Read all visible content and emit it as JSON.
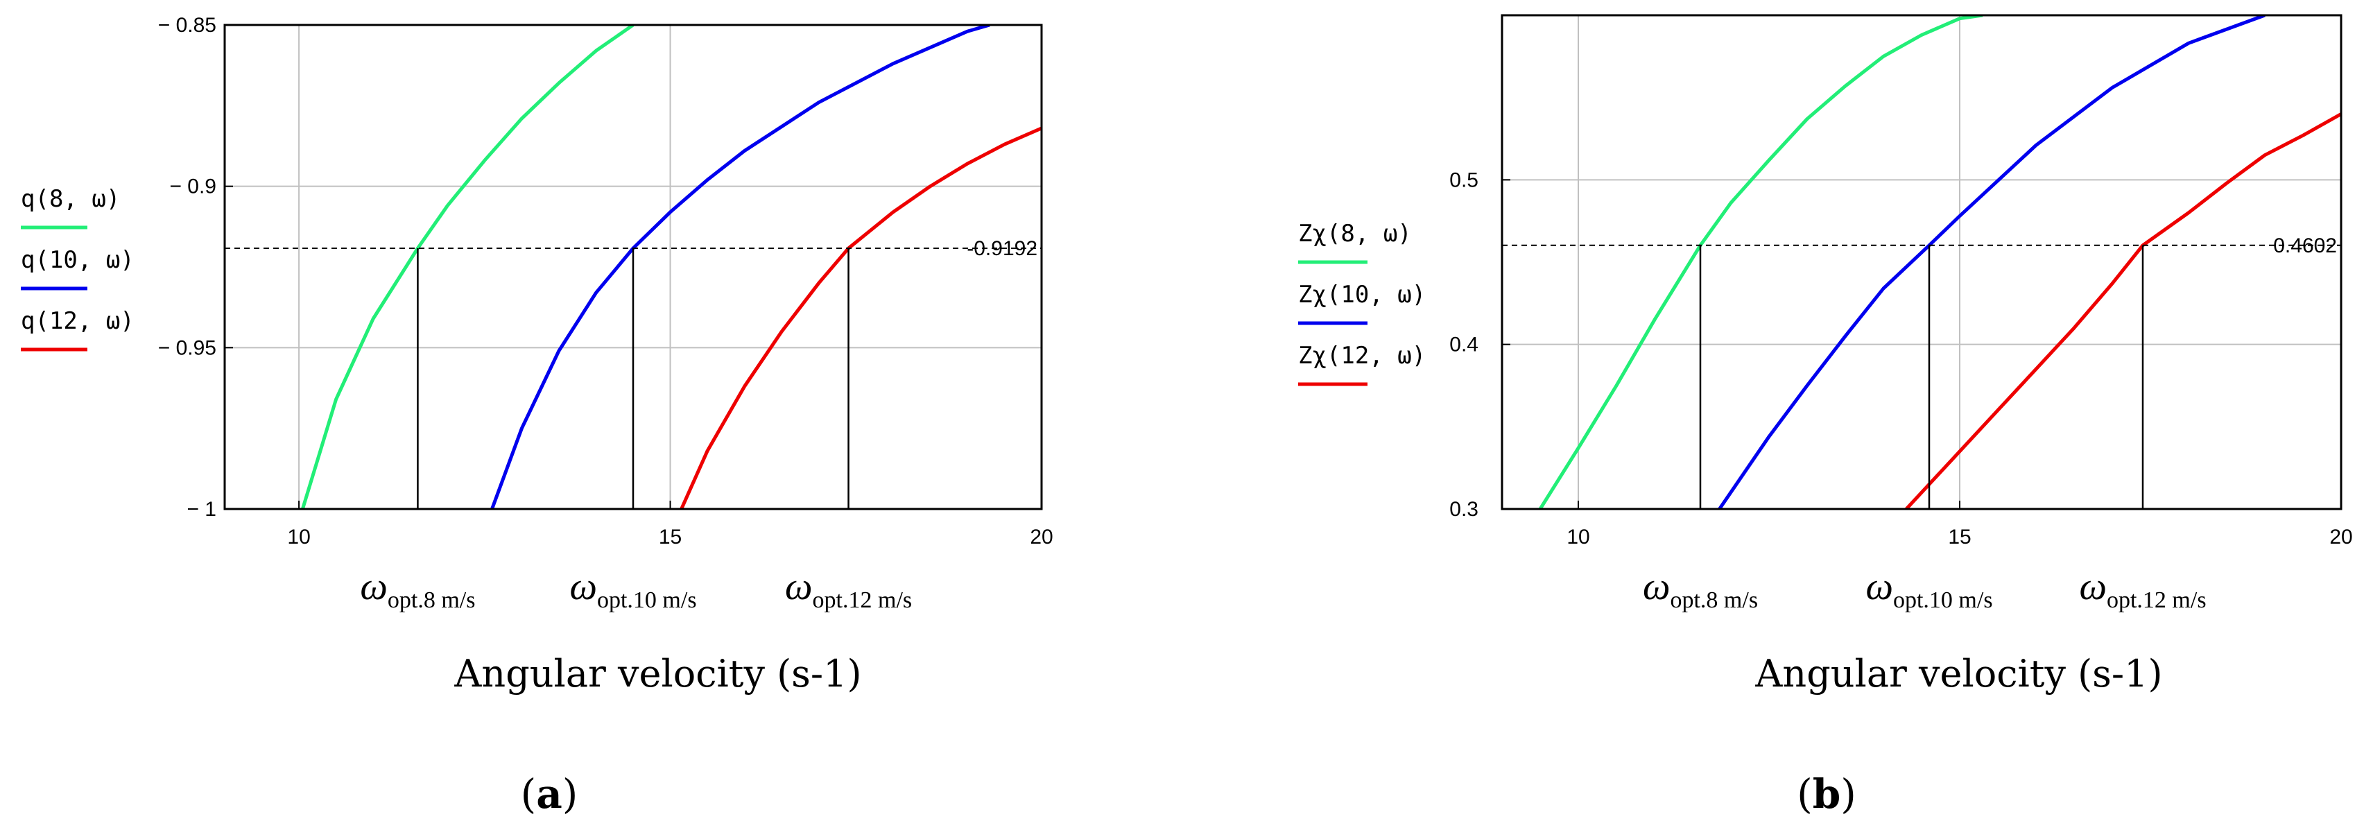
{
  "chart_data": [
    {
      "type": "line",
      "panel_label": "a",
      "xlim": [
        9,
        20
      ],
      "ylim": [
        -1,
        -0.85
      ],
      "x_ticks": [
        10,
        15,
        20
      ],
      "x_tick_labels": [
        "10",
        "15",
        "20"
      ],
      "y_ticks": [
        -1,
        -0.95,
        -0.9,
        -0.85
      ],
      "y_tick_labels": [
        "− 1",
        "− 0.95",
        "− 0.9",
        "− 0.85"
      ],
      "xlabel": "Angular velocity (s-1)",
      "grid": true,
      "legend_position": "left",
      "reference_line": {
        "y": -0.9192,
        "label": "-0.9192"
      },
      "optimum_markers": [
        {
          "x": 11.6,
          "label_main": "ω",
          "label_sub": "opt.8 m/s"
        },
        {
          "x": 14.5,
          "label_main": "ω",
          "label_sub": "opt.10 m/s"
        },
        {
          "x": 17.4,
          "label_main": "ω",
          "label_sub": "opt.12 m/s"
        }
      ],
      "series": [
        {
          "name": "q(8, ω)",
          "color": "#22ee77",
          "x": [
            10.05,
            10.5,
            11.0,
            11.6,
            12.0,
            12.5,
            13.0,
            13.5,
            14.0,
            14.5
          ],
          "y": [
            -1.0,
            -0.966,
            -0.941,
            -0.9192,
            -0.906,
            -0.892,
            -0.879,
            -0.868,
            -0.858,
            -0.85
          ]
        },
        {
          "name": "q(10, ω)",
          "color": "#0000ee",
          "x": [
            12.6,
            13.0,
            13.5,
            14.0,
            14.5,
            15.0,
            15.5,
            16.0,
            17.0,
            18.0,
            19.0,
            19.3
          ],
          "y": [
            -1.0,
            -0.975,
            -0.951,
            -0.933,
            -0.9192,
            -0.908,
            -0.898,
            -0.889,
            -0.874,
            -0.862,
            -0.852,
            -0.85
          ]
        },
        {
          "name": "q(12, ω)",
          "color": "#ee0000",
          "x": [
            15.15,
            15.5,
            16.0,
            16.5,
            17.0,
            17.4,
            18.0,
            18.5,
            19.0,
            19.5,
            20.0
          ],
          "y": [
            -1.0,
            -0.982,
            -0.962,
            -0.945,
            -0.93,
            -0.9192,
            -0.908,
            -0.9,
            -0.893,
            -0.887,
            -0.882
          ]
        }
      ]
    },
    {
      "type": "line",
      "panel_label": "b",
      "xlim": [
        9,
        20
      ],
      "ylim": [
        0.3,
        0.6
      ],
      "x_ticks": [
        10,
        15,
        20
      ],
      "x_tick_labels": [
        "10",
        "15",
        "20"
      ],
      "y_ticks": [
        0.3,
        0.4,
        0.5
      ],
      "y_tick_labels": [
        "0.3",
        "0.4",
        "0.5"
      ],
      "xlabel": "Angular velocity (s-1)",
      "grid": true,
      "legend_position": "left",
      "reference_line": {
        "y": 0.4602,
        "label": "0.4602"
      },
      "optimum_markers": [
        {
          "x": 11.6,
          "label_main": "ω",
          "label_sub": "opt.8 m/s"
        },
        {
          "x": 14.6,
          "label_main": "ω",
          "label_sub": "opt.10 m/s"
        },
        {
          "x": 17.4,
          "label_main": "ω",
          "label_sub": "opt.12 m/s"
        }
      ],
      "series": [
        {
          "name": "Zχ(8, ω)",
          "color": "#22ee77",
          "x": [
            9.5,
            10.0,
            10.5,
            11.0,
            11.6,
            12.0,
            12.5,
            13.0,
            13.5,
            14.0,
            14.5,
            15.0,
            15.3
          ],
          "y": [
            0.3,
            0.337,
            0.375,
            0.415,
            0.4602,
            0.486,
            0.512,
            0.537,
            0.557,
            0.575,
            0.588,
            0.598,
            0.6
          ]
        },
        {
          "name": "Zχ(10, ω)",
          "color": "#0000ee",
          "x": [
            11.85,
            12.5,
            13.0,
            13.5,
            14.0,
            14.6,
            15.0,
            16.0,
            17.0,
            18.0,
            19.0
          ],
          "y": [
            0.3,
            0.344,
            0.375,
            0.405,
            0.434,
            0.4602,
            0.478,
            0.521,
            0.556,
            0.583,
            0.6
          ]
        },
        {
          "name": "Zχ(12, ω)",
          "color": "#ee0000",
          "x": [
            14.3,
            15.0,
            15.5,
            16.0,
            16.5,
            17.0,
            17.4,
            18.0,
            18.5,
            19.0,
            19.5,
            20.0
          ],
          "y": [
            0.3,
            0.335,
            0.36,
            0.385,
            0.41,
            0.437,
            0.4602,
            0.48,
            0.498,
            0.515,
            0.527,
            0.54
          ]
        }
      ]
    }
  ]
}
